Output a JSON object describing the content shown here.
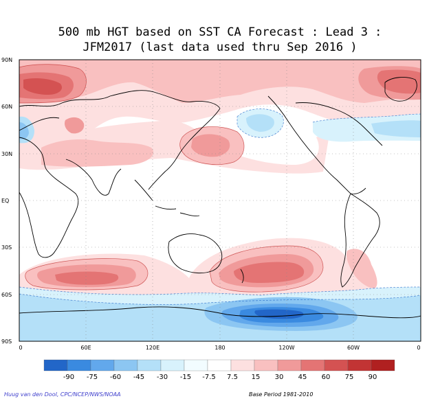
{
  "title": {
    "line1": "500 mb HGT based on SST CA Forecast : Lead 3 :",
    "line2": "JFM2017 (last data used thru Sep 2016 )"
  },
  "lat_labels": [
    "90N",
    "60N",
    "30N",
    "EQ",
    "30S",
    "60S",
    "90S"
  ],
  "lon_labels": [
    "0",
    "60E",
    "120E",
    "180",
    "120W",
    "60W",
    "0"
  ],
  "colorbar": {
    "labels": [
      "-90",
      "-75",
      "-60",
      "-45",
      "-30",
      "-15",
      "-7.5",
      "7.5",
      "15",
      "30",
      "45",
      "60",
      "75",
      "90"
    ],
    "colors": [
      "#2266c8",
      "#3a8ae0",
      "#62a8ec",
      "#8cc6f2",
      "#b4e0f8",
      "#d8f2fc",
      "#f2fcff",
      "#ffffff",
      "#fde0e0",
      "#f9c0c0",
      "#f09a9a",
      "#e47474",
      "#d45252",
      "#c23434",
      "#b02020"
    ]
  },
  "footer": {
    "credit": "Huug van den Dool, CPC/NCEP/NWS/NOAA",
    "base_period": "Base Period 1981-2010"
  },
  "anomaly_regions": {
    "positive": [
      "arctic-cap",
      "north-atlantic-europe",
      "north-pacific",
      "south-indian-ocean",
      "south-pacific"
    ],
    "negative": [
      "east-pacific-north-america",
      "north-atlantic",
      "europe-west",
      "antarctic-ring"
    ]
  }
}
